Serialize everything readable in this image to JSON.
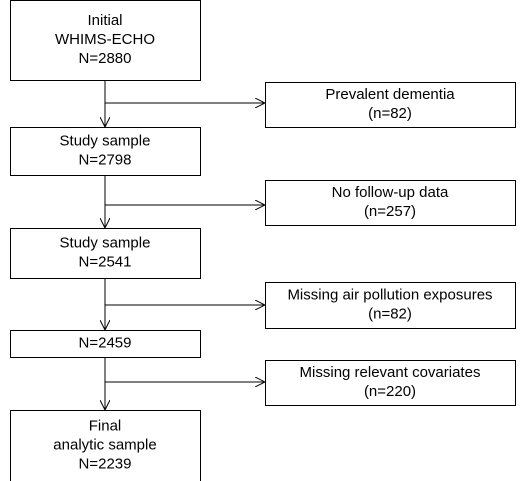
{
  "nodes": [
    {
      "lines": [
        "Initial",
        "WHIMS-ECHO",
        "N=2880"
      ]
    },
    {
      "lines": [
        "Study sample",
        "N=2798"
      ]
    },
    {
      "lines": [
        "Study sample",
        "N=2541"
      ]
    },
    {
      "lines": [
        "N=2459"
      ]
    },
    {
      "lines": [
        "Final",
        "analytic sample",
        "N=2239"
      ]
    }
  ],
  "exclusions": [
    {
      "lines": [
        "Prevalent dementia",
        "(n=82)"
      ]
    },
    {
      "lines": [
        "No follow-up data",
        "(n=257)"
      ]
    },
    {
      "lines": [
        "Missing air pollution exposures",
        "(n=82)"
      ]
    },
    {
      "lines": [
        "Missing relevant covariates",
        "(n=220)"
      ]
    }
  ]
}
